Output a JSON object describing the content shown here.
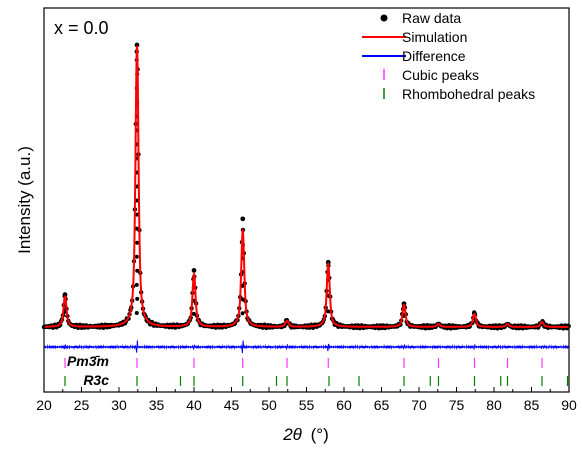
{
  "chart_data": {
    "type": "line",
    "annotation": "x = 0.0",
    "xlabel_symbol": "2θ",
    "xlabel_unit": "(°)",
    "ylabel": "Intensity (a.u.)",
    "xlim": [
      20,
      90
    ],
    "xticks": [
      20,
      25,
      30,
      35,
      40,
      45,
      50,
      55,
      60,
      65,
      70,
      75,
      80,
      85,
      90
    ],
    "y_tick_labels_shown": false,
    "grid": false,
    "legend_position": "top-right",
    "baseline": 10,
    "peaks": [
      {
        "x": 22.8,
        "height": 30
      },
      {
        "x": 32.4,
        "height": 278
      },
      {
        "x": 40.0,
        "height": 52
      },
      {
        "x": 46.5,
        "height": 95
      },
      {
        "x": 52.4,
        "height": 6
      },
      {
        "x": 57.9,
        "height": 62
      },
      {
        "x": 68.0,
        "height": 22
      },
      {
        "x": 72.6,
        "height": 3
      },
      {
        "x": 77.4,
        "height": 13
      },
      {
        "x": 81.8,
        "height": 3
      },
      {
        "x": 86.4,
        "height": 5
      }
    ],
    "peak_width": 0.28,
    "raw_extra_points": [
      {
        "x": 22.8,
        "y": 42
      },
      {
        "x": 32.4,
        "y": 289
      },
      {
        "x": 40.0,
        "y": 66
      },
      {
        "x": 46.5,
        "y": 117
      },
      {
        "x": 57.9,
        "y": 74
      },
      {
        "x": 68.0,
        "y": 33
      },
      {
        "x": 77.4,
        "y": 23
      },
      {
        "x": 86.4,
        "y": 13
      }
    ],
    "difference_spikes": [
      {
        "x": 22.8,
        "amp": 2
      },
      {
        "x": 32.4,
        "amp": 8
      },
      {
        "x": 40.0,
        "amp": 3
      },
      {
        "x": 46.5,
        "amp": 7
      },
      {
        "x": 52.4,
        "amp": 2
      },
      {
        "x": 57.9,
        "amp": 4
      },
      {
        "x": 68.0,
        "amp": 3
      },
      {
        "x": 77.4,
        "amp": 2
      },
      {
        "x": 86.4,
        "amp": 2
      }
    ],
    "cubic_peaks": {
      "label": "Pm3̄m",
      "positions": [
        22.8,
        32.4,
        40.0,
        46.5,
        52.4,
        57.9,
        68.0,
        72.6,
        77.4,
        81.8,
        86.4
      ]
    },
    "rhombohedral_peaks": {
      "label": "R3c",
      "positions": [
        22.8,
        32.4,
        38.2,
        40.0,
        46.5,
        51.0,
        52.4,
        58.0,
        62.0,
        68.0,
        71.5,
        72.6,
        77.4,
        80.9,
        81.8,
        86.4,
        89.8
      ]
    },
    "series": [
      {
        "name": "Raw  data",
        "color": "#000000",
        "marker": "dot"
      },
      {
        "name": "Simulation",
        "color": "#ff0000"
      },
      {
        "name": "Difference",
        "color": "#0000ff"
      },
      {
        "name": "Cubic peaks",
        "color": "#ff33ff",
        "marker": "tick"
      },
      {
        "name": "Rhombohedral peaks",
        "color": "#008000",
        "marker": "tick"
      }
    ]
  }
}
